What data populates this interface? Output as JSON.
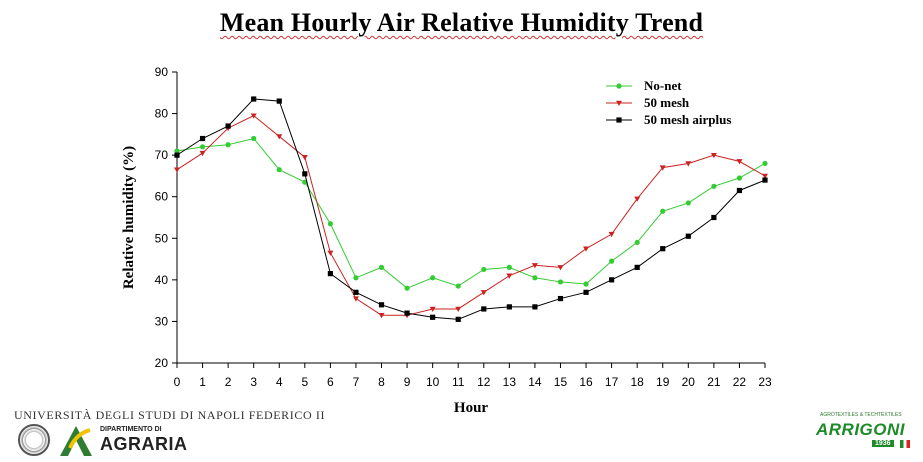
{
  "title": "Mean Hourly Air Relative Humidity Trend",
  "chart_data": {
    "type": "line",
    "xlabel": "Hour",
    "ylabel": "Relative humidity (%)",
    "xlim": [
      0,
      23
    ],
    "ylim": [
      20,
      90
    ],
    "x": [
      0,
      1,
      2,
      3,
      4,
      5,
      6,
      7,
      8,
      9,
      10,
      11,
      12,
      13,
      14,
      15,
      16,
      17,
      18,
      19,
      20,
      21,
      22,
      23
    ],
    "xticks": [
      "0",
      "1",
      "2",
      "3",
      "4",
      "5",
      "6",
      "7",
      "8",
      "9",
      "10",
      "11",
      "12",
      "13",
      "14",
      "15",
      "16",
      "17",
      "18",
      "19",
      "20",
      "21",
      "22",
      "23"
    ],
    "yticks": [
      "20",
      "30",
      "40",
      "50",
      "60",
      "70",
      "80",
      "90"
    ],
    "grid": false,
    "legend_position": "top-right",
    "series": [
      {
        "name": "No-net",
        "color": "#33cc33",
        "marker": "circle",
        "values": [
          71.0,
          72.0,
          72.5,
          74.0,
          66.5,
          63.5,
          53.5,
          40.5,
          43.0,
          38.0,
          40.5,
          38.5,
          42.5,
          43.0,
          40.5,
          39.5,
          39.0,
          44.5,
          49.0,
          56.5,
          58.5,
          62.5,
          64.5,
          68.0
        ]
      },
      {
        "name": "50 mesh",
        "color": "#cc2222",
        "marker": "triangle-down",
        "values": [
          66.5,
          70.5,
          76.5,
          79.5,
          74.5,
          69.5,
          46.5,
          35.5,
          31.5,
          31.5,
          33.0,
          33.0,
          37.0,
          41.0,
          43.5,
          43.0,
          47.5,
          51.0,
          59.5,
          67.0,
          68.0,
          70.0,
          68.5,
          65.0
        ]
      },
      {
        "name": "50 mesh airplus",
        "color": "#000000",
        "marker": "square",
        "values": [
          70.0,
          74.0,
          77.0,
          83.5,
          83.0,
          65.5,
          41.5,
          37.0,
          34.0,
          32.0,
          31.0,
          30.5,
          33.0,
          33.5,
          33.5,
          35.5,
          37.0,
          40.0,
          43.0,
          47.5,
          50.5,
          55.0,
          61.5,
          64.0
        ]
      }
    ]
  },
  "logos": {
    "university": "UNIVERSITÀ DEGLI STUDI DI NAPOLI FEDERICO II",
    "department_small": "DIPARTIMENTO DI",
    "department": "AGRARIA",
    "company_sub": "AGROTEXTILES & TECHTEXTILES",
    "company": "ARRIGONI",
    "company_year": "1936"
  }
}
